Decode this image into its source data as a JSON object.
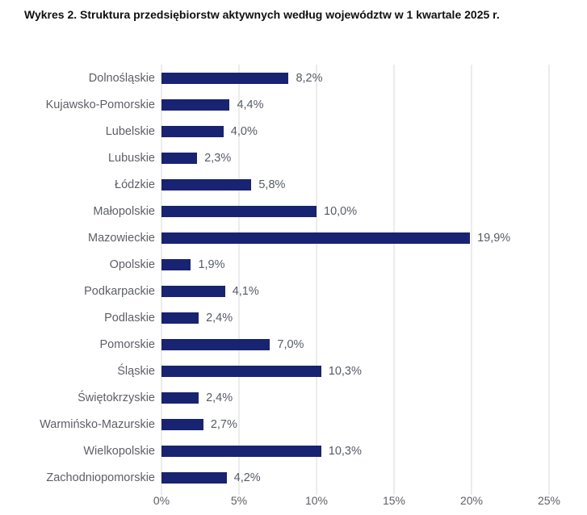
{
  "title": "Wykres 2. Struktura przedsiębiorstw aktywnych według województw w 1 kwartale 2025 r.",
  "chart_data": {
    "type": "bar",
    "orientation": "horizontal",
    "title": "Wykres 2. Struktura przedsiębiorstw aktywnych według województw w 1 kwartale 2025 r.",
    "categories": [
      "Dolnośląskie",
      "Kujawsko-Pomorskie",
      "Lubelskie",
      "Lubuskie",
      "Łódzkie",
      "Małopolskie",
      "Mazowieckie",
      "Opolskie",
      "Podkarpackie",
      "Podlaskie",
      "Pomorskie",
      "Śląskie",
      "Świętokrzyskie",
      "Warmińsko-Mazurskie",
      "Wielkopolskie",
      "Zachodniopomorskie"
    ],
    "values": [
      8.2,
      4.4,
      4.0,
      2.3,
      5.8,
      10.0,
      19.9,
      1.9,
      4.1,
      2.4,
      7.0,
      10.3,
      2.4,
      2.7,
      10.3,
      4.2
    ],
    "value_labels": [
      "8,2%",
      "4,4%",
      "4,0%",
      "2,3%",
      "5,8%",
      "10,0%",
      "19,9%",
      "1,9%",
      "4,1%",
      "2,4%",
      "7,0%",
      "10,3%",
      "2,4%",
      "2,7%",
      "10,3%",
      "4,2%"
    ],
    "xlabel": "",
    "ylabel": "",
    "xlim": [
      0,
      25
    ],
    "x_tick_labels": [
      "0%",
      "5%",
      "10%",
      "15%",
      "20%",
      "25%"
    ],
    "grid": "vertical",
    "legend": "none",
    "colors": {
      "bar": "#182371",
      "grid": "#d9d9d9",
      "category_label": "#5d5f66",
      "value_label": "#565b66",
      "axis_tick_label": "#5d5f66",
      "title": "#101010",
      "background": "#ffffff"
    }
  }
}
